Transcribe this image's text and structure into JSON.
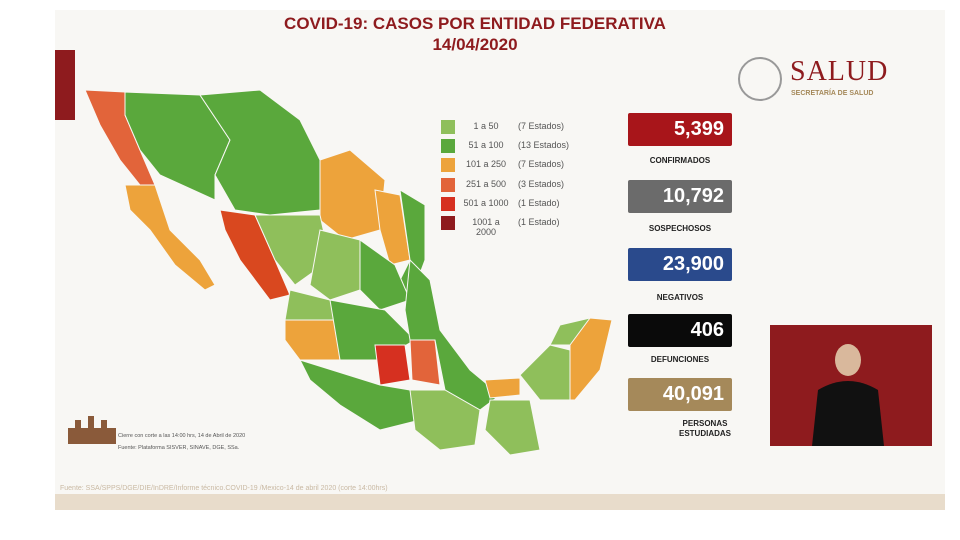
{
  "header": {
    "title": "COVID-19: CASOS POR ENTIDAD FEDERATIVA",
    "date": "14/04/2020"
  },
  "logo": {
    "name": "SALUD",
    "subtitle": "SECRETARÍA DE SALUD"
  },
  "legend": [
    {
      "range": "1 a 50",
      "count": "(7 Estados)",
      "color": "#8fbf5b"
    },
    {
      "range": "51 a 100",
      "count": "(13 Estados)",
      "color": "#5aa83c"
    },
    {
      "range": "101 a 250",
      "count": "(7 Estados)",
      "color": "#eda33b"
    },
    {
      "range": "251 a 500",
      "count": "(3 Estados)",
      "color": "#e2643a"
    },
    {
      "range": "501 a 1000",
      "count": "(1 Estado)",
      "color": "#d63020"
    },
    {
      "range": "1001 a 2000",
      "count": "(1 Estado)",
      "color": "#8e1b1e"
    }
  ],
  "stats": [
    {
      "value": "5,399",
      "label": "CONFIRMADOS",
      "color": "#a8151a"
    },
    {
      "value": "10,792",
      "label": "SOSPECHOSOS",
      "color": "#6b6b6b"
    },
    {
      "value": "23,900",
      "label": "NEGATIVOS",
      "color": "#2a4a8c"
    },
    {
      "value": "406",
      "label": "DEFUNCIONES",
      "color": "#0a0a0a"
    },
    {
      "value": "40,091",
      "label": "PERSONAS ESTUDIADAS",
      "color": "#a5895a"
    }
  ],
  "notes": [
    "Cierre con corte a las 14:00 hrs, 14 de Abril de 2020",
    "Fuente: Plataforma SISVER, SINAVE, DGE, SSa."
  ],
  "source": "Fuente: SSA/SPPS/DGE/DIE/InDRE/Informe técnico.COVID-19 /Mexico-14 de abril 2020 (corte 14:00hrs)"
}
